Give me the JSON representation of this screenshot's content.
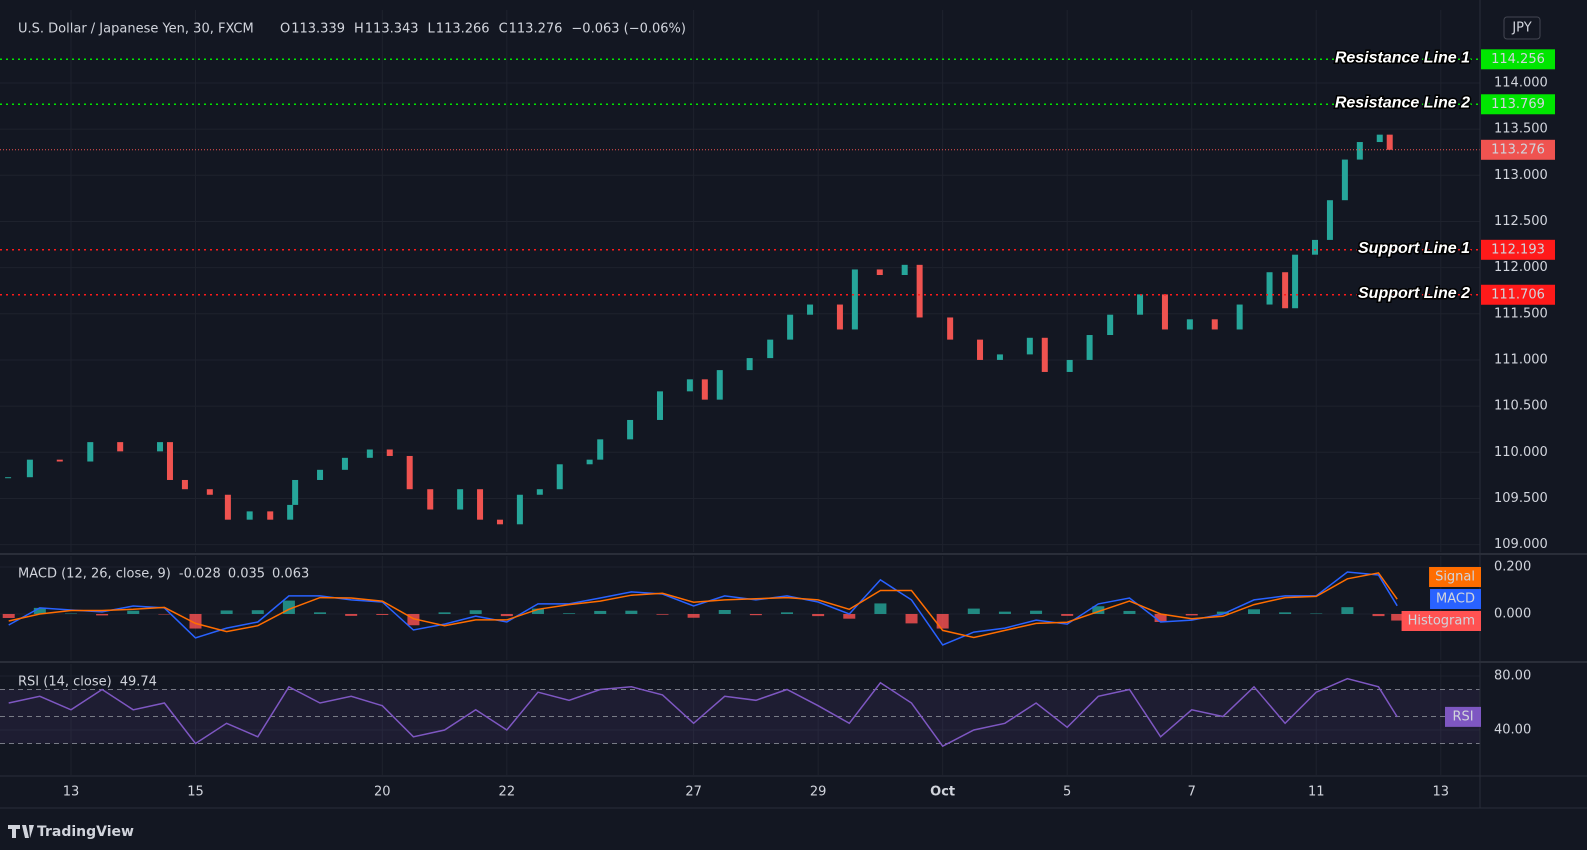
{
  "header": {
    "symbol": "U.S. Dollar / Japanese Yen, 30, FXCM",
    "ohlc": [
      {
        "key": "O",
        "value": "113.339"
      },
      {
        "key": "H",
        "value": "113.343"
      },
      {
        "key": "L",
        "value": "113.266"
      },
      {
        "key": "C",
        "value": "113.276"
      }
    ],
    "change": "−0.063 (−0.06%)"
  },
  "currency": "JPY",
  "footer": "TradingView",
  "chart_data": [
    {
      "type": "candlestick",
      "x": [
        -1.01,
        -0.66,
        -0.18,
        0.31,
        0.79,
        1.43,
        1.59,
        1.83,
        2.23,
        2.52,
        2.87,
        3.2,
        3.52,
        3.6,
        4.0,
        4.4,
        4.8,
        5.12,
        5.44,
        5.77,
        6.25,
        6.57,
        6.89,
        7.21,
        7.53,
        7.85,
        8.33,
        8.5,
        8.98,
        9.46,
        9.94,
        10.18,
        10.42,
        10.9,
        11.23,
        11.55,
        11.87,
        12.35,
        12.59,
        12.99,
        13.39,
        13.63,
        14.12,
        14.6,
        14.92,
        15.4,
        15.64,
        16.04,
        16.36,
        16.69,
        17.17,
        17.57,
        17.97,
        18.37,
        18.77,
        19.25,
        19.5,
        19.66,
        19.98,
        20.22,
        20.46,
        20.7,
        21.02,
        21.18
      ],
      "values": [
        109.73,
        109.92,
        109.9,
        110.11,
        110.01,
        110.11,
        109.7,
        109.6,
        109.54,
        109.27,
        109.36,
        109.27,
        109.43,
        109.7,
        109.81,
        109.94,
        110.03,
        109.96,
        109.6,
        109.38,
        109.6,
        109.27,
        109.22,
        109.54,
        109.6,
        109.87,
        109.92,
        110.14,
        110.35,
        110.66,
        110.79,
        110.57,
        110.89,
        111.02,
        111.22,
        111.49,
        111.6,
        111.33,
        111.98,
        111.92,
        112.03,
        111.46,
        111.22,
        111.0,
        111.06,
        111.24,
        110.87,
        111.0,
        111.27,
        111.49,
        111.71,
        111.33,
        111.44,
        111.33,
        111.6,
        111.95,
        111.56,
        112.14,
        112.3,
        112.73,
        113.17,
        113.36,
        113.44,
        113.276
      ],
      "up_color": "#26a69a",
      "down_color": "#ef5350",
      "xlim": [
        -1.14,
        22.63
      ],
      "ylim": [
        108.92,
        114.79
      ],
      "yticks": [
        {
          "value": 109,
          "label": "109.000"
        },
        {
          "value": 109.5,
          "label": "109.500"
        },
        {
          "value": 110,
          "label": "110.000"
        },
        {
          "value": 110.5,
          "label": "110.500"
        },
        {
          "value": 111,
          "label": "111.000"
        },
        {
          "value": 111.5,
          "label": "111.500"
        },
        {
          "value": 112,
          "label": "112.000"
        },
        {
          "value": 112.5,
          "label": "112.500"
        },
        {
          "value": 113,
          "label": "113.000"
        },
        {
          "value": 113.5,
          "label": "113.500"
        },
        {
          "value": 114,
          "label": "114.000"
        }
      ],
      "last_price": 113.276,
      "lines": [
        {
          "name": "Resistance Line 1",
          "value": 114.256,
          "color": "#00e600"
        },
        {
          "name": "Resistance Line 2",
          "value": 113.769,
          "color": "#00e600"
        },
        {
          "name": "Support Line 1",
          "value": 112.193,
          "color": "#ff1a1a"
        },
        {
          "name": "Support Line 2",
          "value": 111.706,
          "color": "#ff1a1a"
        }
      ],
      "grid": true
    },
    {
      "type": "macd",
      "title": "MACD (12, 26, close, 9)",
      "x": [
        -1,
        -0.5,
        0,
        0.5,
        1,
        1.5,
        2,
        2.5,
        3,
        3.5,
        4,
        4.5,
        5,
        5.5,
        6,
        6.5,
        7,
        7.5,
        8,
        8.5,
        9,
        9.5,
        10,
        10.5,
        11,
        11.5,
        12,
        12.5,
        13,
        13.5,
        14,
        14.5,
        15,
        15.5,
        16,
        16.5,
        17,
        17.5,
        18,
        18.5,
        19,
        19.5,
        20,
        20.5,
        21,
        21.3
      ],
      "series": [
        {
          "name": "Histogram",
          "color": "#ff5252",
          "up_color": "#26a69a",
          "values": [
            -0.017,
            0.026,
            0.002,
            -0.006,
            0.014,
            -0.002,
            -0.062,
            0.015,
            0.016,
            0.057,
            0.007,
            -0.008,
            -0.004,
            -0.048,
            0.007,
            0.016,
            -0.009,
            0.023,
            0.003,
            0.013,
            0.014,
            -0.003,
            -0.016,
            0.017,
            -0.005,
            0.007,
            -0.009,
            -0.02,
            0.045,
            -0.04,
            -0.062,
            0.023,
            0.01,
            0.014,
            -0.008,
            0.033,
            0.013,
            -0.034,
            -0.006,
            0.01,
            0.02,
            0.007,
            0.002,
            0.029,
            -0.009,
            -0.028
          ]
        },
        {
          "name": "MACD",
          "color": "#2962ff",
          "values": [
            -0.047,
            0.026,
            0.017,
            0.009,
            0.034,
            0.026,
            -0.102,
            -0.06,
            -0.034,
            0.077,
            0.077,
            0.06,
            0.051,
            -0.068,
            -0.043,
            -0.009,
            -0.034,
            0.043,
            0.043,
            0.068,
            0.094,
            0.085,
            0.034,
            0.077,
            0.06,
            0.077,
            0.051,
            0,
            0.145,
            0.06,
            -0.132,
            -0.077,
            -0.06,
            -0.026,
            -0.043,
            0.043,
            0.068,
            -0.034,
            -0.026,
            0,
            0.06,
            0.077,
            0.077,
            0.179,
            0.166,
            0.035
          ]
        },
        {
          "name": "Signal",
          "color": "#ff6d00",
          "values": [
            -0.03,
            0.0,
            0.015,
            0.015,
            0.02,
            0.028,
            -0.04,
            -0.075,
            -0.05,
            0.02,
            0.07,
            0.068,
            0.055,
            -0.02,
            -0.05,
            -0.025,
            -0.025,
            0.02,
            0.04,
            0.055,
            0.08,
            0.088,
            0.05,
            0.06,
            0.065,
            0.07,
            0.06,
            0.02,
            0.1,
            0.1,
            -0.07,
            -0.1,
            -0.07,
            -0.04,
            -0.035,
            0.01,
            0.055,
            0.0,
            -0.02,
            -0.01,
            0.04,
            0.07,
            0.075,
            0.15,
            0.175,
            0.063
          ]
        }
      ],
      "xlim": [
        -1.14,
        22.63
      ],
      "ylim": [
        -0.196,
        0.247
      ],
      "yticks": [
        {
          "value": 0,
          "label": "0.000"
        },
        {
          "value": 0.2,
          "label": "0.200"
        }
      ]
    },
    {
      "type": "rsi",
      "title": "RSI (14, close)",
      "color": "#7e57c2",
      "label": "RSI",
      "x": [
        -1,
        -0.5,
        0,
        0.5,
        1,
        1.5,
        2,
        2.5,
        3,
        3.5,
        4,
        4.5,
        5,
        5.5,
        6,
        6.5,
        7,
        7.5,
        8,
        8.5,
        9,
        9.5,
        10,
        10.5,
        11,
        11.5,
        12,
        12.5,
        13,
        13.5,
        14,
        14.5,
        15,
        15.5,
        16,
        16.5,
        17,
        17.5,
        18,
        18.5,
        19,
        19.5,
        20,
        20.5,
        21,
        21.3
      ],
      "values": [
        60,
        65,
        55,
        70,
        55,
        60,
        30,
        45,
        35,
        72,
        60,
        65,
        58,
        35,
        40,
        55,
        40,
        68,
        62,
        70,
        72,
        66,
        45,
        65,
        62,
        70,
        58,
        45,
        75,
        60,
        28,
        40,
        45,
        60,
        42,
        65,
        70,
        35,
        55,
        50,
        72,
        45,
        68,
        78,
        72,
        49.74
      ],
      "bands": [
        70,
        50,
        30
      ],
      "xlim": [
        -1.14,
        22.63
      ],
      "ylim": [
        6.7,
        88.9
      ],
      "yticks": [
        {
          "value": 40,
          "label": "40.00"
        },
        {
          "value": 80,
          "label": "80.00"
        }
      ],
      "xticks": [
        {
          "value": 0,
          "label": "13"
        },
        {
          "value": 2,
          "label": "15"
        },
        {
          "value": 5,
          "label": "20"
        },
        {
          "value": 7,
          "label": "22"
        },
        {
          "value": 10,
          "label": "27"
        },
        {
          "value": 12,
          "label": "29"
        },
        {
          "value": 14,
          "label": "Oct"
        },
        {
          "value": 16,
          "label": "5"
        },
        {
          "value": 18,
          "label": "7"
        },
        {
          "value": 20,
          "label": "11"
        },
        {
          "value": 22,
          "label": "13"
        }
      ]
    }
  ]
}
